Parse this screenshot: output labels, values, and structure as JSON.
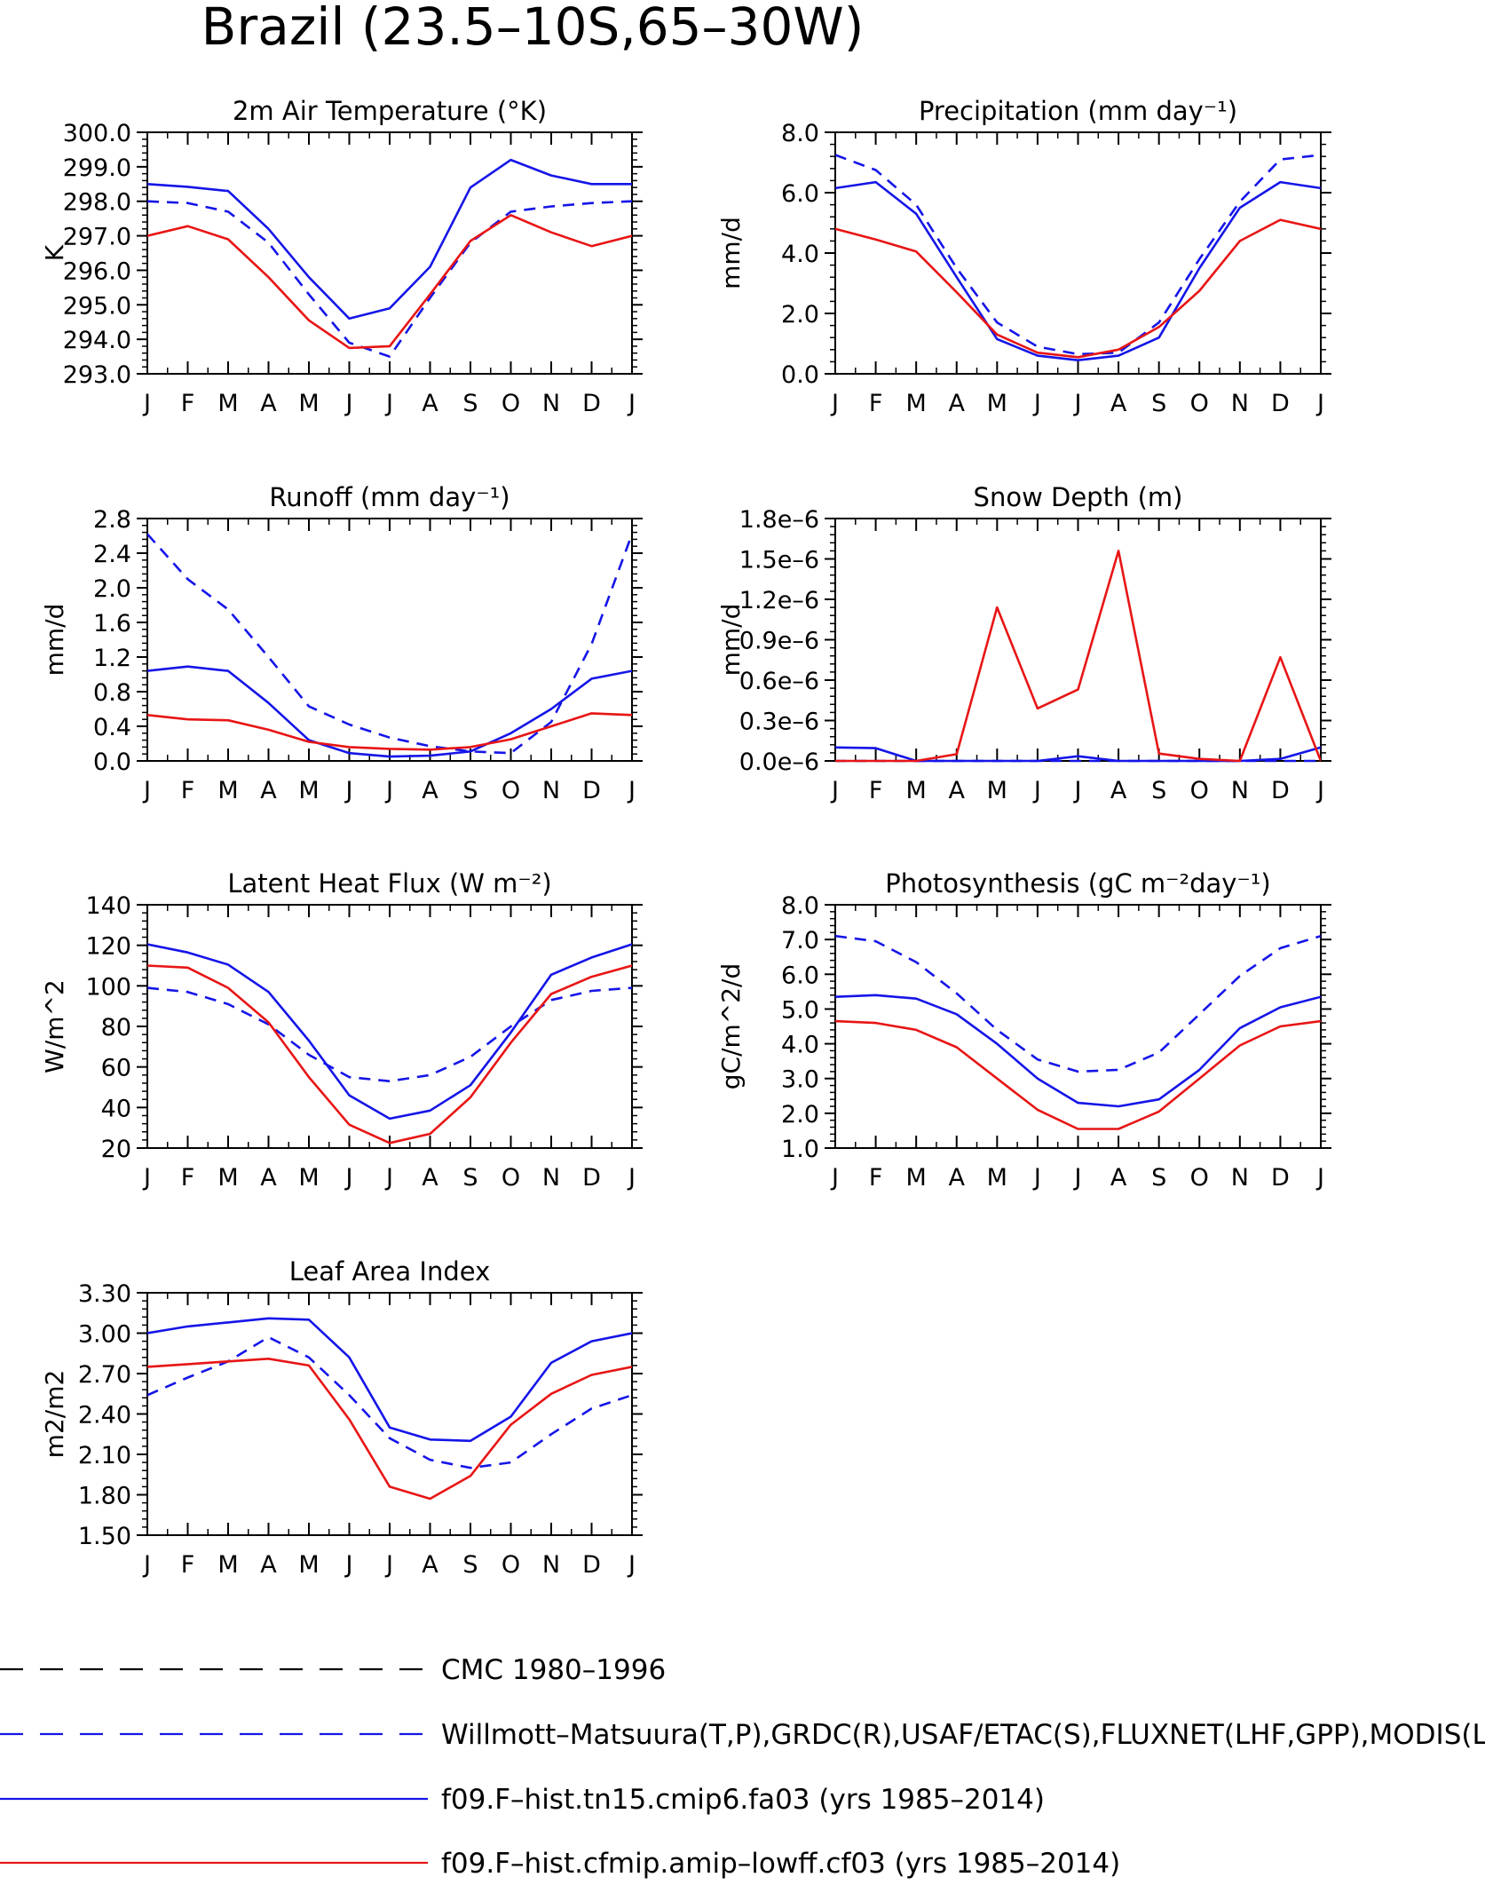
{
  "figure_title": "Brazil (23.5–10S,65–30W)",
  "colors": {
    "cmc": "#000000",
    "obs": "#1515e8",
    "model1": "#1515e8",
    "model2": "#e81515"
  },
  "legend": [
    {
      "label": "CMC 1980–1996",
      "color": "#000000",
      "style": "dashed"
    },
    {
      "label": "Willmott–Matsuura(T,P),GRDC(R),USAF/ETAC(S),FLUXNET(LHF,GPP),MODIS(L",
      "color": "#1515e8",
      "style": "dashed"
    },
    {
      "label": "f09.F–hist.tn15.cmip6.fa03 (yrs 1985–2014)",
      "color": "#1515e8",
      "style": "solid"
    },
    {
      "label": "f09.F–hist.cfmip.amip–lowff.cf03 (yrs 1985–2014)",
      "color": "#e81515",
      "style": "solid"
    }
  ],
  "chart_data": [
    {
      "type": "line",
      "title": "2m Air Temperature (°K)",
      "ylabel": "K",
      "categories": [
        "J",
        "F",
        "M",
        "A",
        "M",
        "J",
        "J",
        "A",
        "S",
        "O",
        "N",
        "D",
        "J"
      ],
      "ylim": [
        293.0,
        300.0
      ],
      "yticks": [
        293.0,
        294.0,
        295.0,
        296.0,
        297.0,
        298.0,
        299.0,
        300.0
      ],
      "tick_labels": [
        "293.0",
        "294.0",
        "295.0",
        "296.0",
        "297.0",
        "298.0",
        "299.0",
        "300.0"
      ],
      "series": [
        {
          "key": "obs",
          "values": [
            298.0,
            297.95,
            297.7,
            296.8,
            295.3,
            293.9,
            293.5,
            295.2,
            296.8,
            297.7,
            297.85,
            297.95,
            298.0
          ]
        },
        {
          "key": "model1",
          "values": [
            298.5,
            298.42,
            298.3,
            297.2,
            295.8,
            294.6,
            294.9,
            296.1,
            298.4,
            299.2,
            298.75,
            298.5,
            298.5
          ]
        },
        {
          "key": "model2",
          "values": [
            297.0,
            297.28,
            296.9,
            295.8,
            294.55,
            293.75,
            293.8,
            295.3,
            296.85,
            297.6,
            297.1,
            296.7,
            297.0
          ]
        }
      ]
    },
    {
      "type": "line",
      "title": "Precipitation (mm day⁻¹)",
      "ylabel": "mm/d",
      "categories": [
        "J",
        "F",
        "M",
        "A",
        "M",
        "J",
        "J",
        "A",
        "S",
        "O",
        "N",
        "D",
        "J"
      ],
      "ylim": [
        0.0,
        8.0
      ],
      "yticks": [
        0,
        2,
        4,
        6,
        8
      ],
      "tick_labels": [
        "0.0",
        "2.0",
        "4.0",
        "6.0",
        "8.0"
      ],
      "series": [
        {
          "key": "obs",
          "values": [
            7.25,
            6.75,
            5.6,
            3.5,
            1.7,
            0.9,
            0.65,
            0.7,
            1.7,
            3.8,
            5.7,
            7.1,
            7.25
          ]
        },
        {
          "key": "model1",
          "values": [
            6.15,
            6.35,
            5.3,
            3.2,
            1.15,
            0.6,
            0.45,
            0.6,
            1.2,
            3.5,
            5.5,
            6.35,
            6.15
          ]
        },
        {
          "key": "model2",
          "values": [
            4.8,
            4.45,
            4.05,
            2.7,
            1.3,
            0.7,
            0.55,
            0.8,
            1.55,
            2.75,
            4.4,
            5.1,
            4.8
          ]
        }
      ]
    },
    {
      "type": "line",
      "title": "Runoff (mm day⁻¹)",
      "ylabel": "mm/d",
      "categories": [
        "J",
        "F",
        "M",
        "A",
        "M",
        "J",
        "J",
        "A",
        "S",
        "O",
        "N",
        "D",
        "J"
      ],
      "ylim": [
        0.0,
        2.8
      ],
      "yticks": [
        0,
        0.4,
        0.8,
        1.2,
        1.6,
        2.0,
        2.4,
        2.8
      ],
      "tick_labels": [
        "0.0",
        "0.4",
        "0.8",
        "1.2",
        "1.6",
        "2.0",
        "2.4",
        "2.8"
      ],
      "series": [
        {
          "key": "obs",
          "values": [
            2.62,
            2.1,
            1.75,
            1.2,
            0.63,
            0.42,
            0.27,
            0.17,
            0.11,
            0.09,
            0.45,
            1.35,
            2.62
          ]
        },
        {
          "key": "model1",
          "values": [
            1.04,
            1.09,
            1.04,
            0.67,
            0.24,
            0.09,
            0.05,
            0.06,
            0.11,
            0.32,
            0.6,
            0.95,
            1.04
          ]
        },
        {
          "key": "model2",
          "values": [
            0.53,
            0.48,
            0.47,
            0.36,
            0.22,
            0.16,
            0.14,
            0.13,
            0.16,
            0.25,
            0.4,
            0.55,
            0.53
          ]
        }
      ]
    },
    {
      "type": "line",
      "title": "Snow Depth (m)",
      "ylabel": "mm/d",
      "categories": [
        "J",
        "F",
        "M",
        "A",
        "M",
        "J",
        "J",
        "A",
        "S",
        "O",
        "N",
        "D",
        "J"
      ],
      "ylim": [
        0.0,
        1.8e-06
      ],
      "yticks": [
        0,
        3e-07,
        6e-07,
        9e-07,
        1.2e-06,
        1.5e-06,
        1.8e-06
      ],
      "tick_labels": [
        "0.0e–6",
        "0.3e–6",
        "0.6e–6",
        "0.9e–6",
        "1.2e–6",
        "1.5e–6",
        "1.8e–6"
      ],
      "series": [
        {
          "key": "obs",
          "values": [
            0,
            0,
            0,
            0,
            0,
            0,
            0,
            0,
            0,
            0,
            0,
            0,
            0
          ]
        },
        {
          "key": "model1",
          "values": [
            1e-07,
            9.5e-08,
            0,
            0,
            0,
            0,
            3.5e-08,
            0,
            0,
            0,
            0,
            1.5e-08,
            1e-07
          ]
        },
        {
          "key": "model2",
          "values": [
            0,
            0,
            0,
            5e-08,
            1.14e-06,
            3.9e-07,
            5.3e-07,
            1.56e-06,
            5.5e-08,
            1.5e-08,
            0,
            7.7e-07,
            0
          ]
        }
      ]
    },
    {
      "type": "line",
      "title": "Latent Heat Flux (W m⁻²)",
      "ylabel": "W/m^2",
      "categories": [
        "J",
        "F",
        "M",
        "A",
        "M",
        "J",
        "J",
        "A",
        "S",
        "O",
        "N",
        "D",
        "J"
      ],
      "ylim": [
        20,
        140
      ],
      "yticks": [
        20,
        40,
        60,
        80,
        100,
        120,
        140
      ],
      "tick_labels": [
        "20",
        "40",
        "60",
        "80",
        "100",
        "120",
        "140"
      ],
      "series": [
        {
          "key": "obs",
          "values": [
            99,
            97,
            91,
            81,
            66,
            55,
            53,
            56,
            65,
            80,
            93,
            97.5,
            99
          ]
        },
        {
          "key": "model1",
          "values": [
            120.5,
            116.5,
            110.5,
            97,
            73,
            46,
            34.5,
            38.5,
            51,
            77,
            105.5,
            114,
            120.5
          ]
        },
        {
          "key": "model2",
          "values": [
            110,
            109,
            99,
            82,
            55,
            31.5,
            22.5,
            27,
            45,
            72,
            96,
            104.5,
            110
          ]
        }
      ]
    },
    {
      "type": "line",
      "title": "Photosynthesis (gC m⁻²day⁻¹)",
      "ylabel": "gC/m^2/d",
      "categories": [
        "J",
        "F",
        "M",
        "A",
        "M",
        "J",
        "J",
        "A",
        "S",
        "O",
        "N",
        "D",
        "J"
      ],
      "ylim": [
        1.0,
        8.0
      ],
      "yticks": [
        1,
        2,
        3,
        4,
        5,
        6,
        7,
        8
      ],
      "tick_labels": [
        "1.0",
        "2.0",
        "3.0",
        "4.0",
        "5.0",
        "6.0",
        "7.0",
        "8.0"
      ],
      "series": [
        {
          "key": "obs",
          "values": [
            7.1,
            6.95,
            6.35,
            5.45,
            4.4,
            3.55,
            3.2,
            3.25,
            3.75,
            4.85,
            5.95,
            6.75,
            7.1
          ]
        },
        {
          "key": "model1",
          "values": [
            5.35,
            5.4,
            5.3,
            4.85,
            4.0,
            3.0,
            2.3,
            2.2,
            2.4,
            3.25,
            4.45,
            5.05,
            5.35
          ]
        },
        {
          "key": "model2",
          "values": [
            4.65,
            4.6,
            4.4,
            3.9,
            3.0,
            2.1,
            1.55,
            1.55,
            2.05,
            3.0,
            3.95,
            4.5,
            4.65
          ]
        }
      ]
    },
    {
      "type": "line",
      "title": "Leaf Area Index",
      "ylabel": "m2/m2",
      "categories": [
        "J",
        "F",
        "M",
        "A",
        "M",
        "J",
        "J",
        "A",
        "S",
        "O",
        "N",
        "D",
        "J"
      ],
      "ylim": [
        1.5,
        3.3
      ],
      "yticks": [
        1.5,
        1.8,
        2.1,
        2.4,
        2.7,
        3.0,
        3.3
      ],
      "tick_labels": [
        "1.50",
        "1.80",
        "2.10",
        "2.40",
        "2.70",
        "3.00",
        "3.30"
      ],
      "series": [
        {
          "key": "obs",
          "values": [
            2.54,
            2.67,
            2.79,
            2.97,
            2.82,
            2.54,
            2.22,
            2.06,
            2.0,
            2.04,
            2.25,
            2.44,
            2.54
          ]
        },
        {
          "key": "model1",
          "values": [
            3.0,
            3.05,
            3.08,
            3.11,
            3.1,
            2.82,
            2.3,
            2.21,
            2.2,
            2.38,
            2.78,
            2.94,
            3.0
          ]
        },
        {
          "key": "model2",
          "values": [
            2.75,
            2.77,
            2.79,
            2.81,
            2.76,
            2.36,
            1.86,
            1.77,
            1.94,
            2.32,
            2.55,
            2.69,
            2.75
          ]
        }
      ]
    }
  ]
}
